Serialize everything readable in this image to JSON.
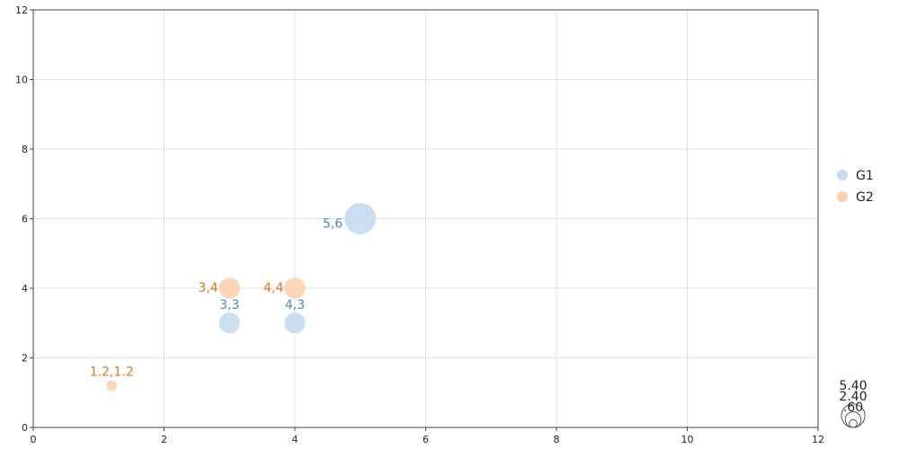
{
  "chart_data": {
    "type": "scatter",
    "subtype": "bubble",
    "title": "",
    "xlabel": "",
    "ylabel": "",
    "xlim": [
      0,
      12
    ],
    "ylim": [
      0,
      12
    ],
    "x_ticks": [
      "0",
      "2",
      "4",
      "6",
      "8",
      "10",
      "12"
    ],
    "y_ticks": [
      "0",
      "2",
      "4",
      "6",
      "8",
      "10",
      "12"
    ],
    "grid": true,
    "legend_position": "right",
    "series": [
      {
        "name": "G1",
        "color": "#c6dbef",
        "label_color": "#4a86c5",
        "points": [
          {
            "x": 5,
            "y": 6,
            "size": 5.4,
            "label": "5,6"
          },
          {
            "x": 3,
            "y": 3,
            "size": 2.4,
            "label": "3,3"
          },
          {
            "x": 4,
            "y": 3,
            "size": 2.4,
            "label": "4,3"
          }
        ]
      },
      {
        "name": "G2",
        "color": "#fdd0b1",
        "label_color": "#e6731f",
        "points": [
          {
            "x": 3,
            "y": 4,
            "size": 2.4,
            "label": "3,4"
          },
          {
            "x": 4,
            "y": 4,
            "size": 2.4,
            "label": "4,4"
          },
          {
            "x": 1.2,
            "y": 1.2,
            "size": 0.6,
            "label": "1.2,1.2"
          }
        ]
      }
    ],
    "size_legend": [
      "5.40",
      "2.40",
      ".60"
    ]
  }
}
